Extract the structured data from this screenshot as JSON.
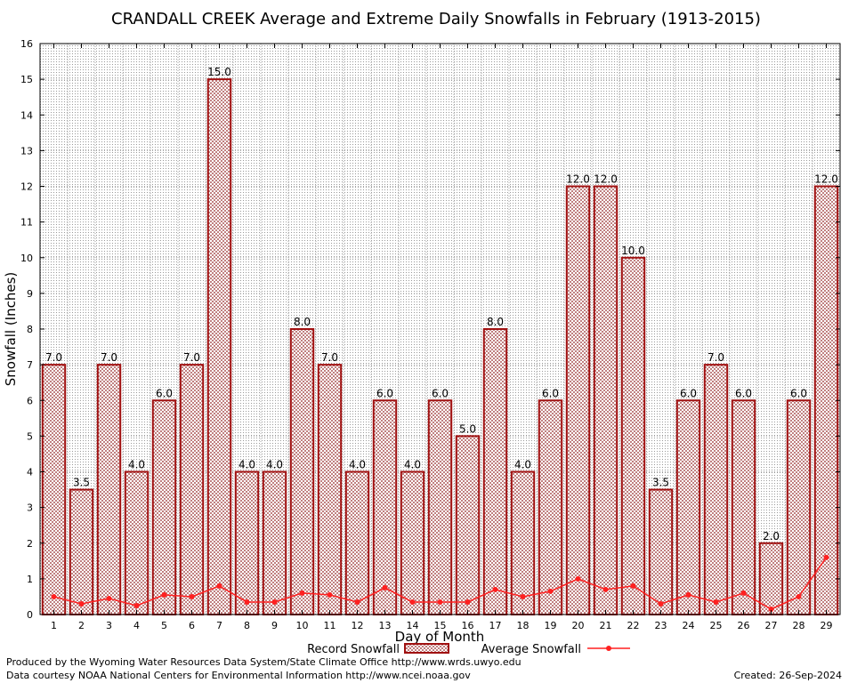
{
  "chart_data": {
    "type": "bar",
    "title": "CRANDALL CREEK Average and Extreme Daily Snowfalls in February (1913-2015)",
    "xlabel": "Day of Month",
    "ylabel": "Snowfall (Inches)",
    "ylim": [
      0,
      16
    ],
    "yticks": [
      "0",
      "1",
      "2",
      "3",
      "4",
      "5",
      "6",
      "7",
      "8",
      "9",
      "10",
      "11",
      "12",
      "13",
      "14",
      "15",
      "16"
    ],
    "categories": [
      "1",
      "2",
      "3",
      "4",
      "5",
      "6",
      "7",
      "8",
      "9",
      "10",
      "11",
      "12",
      "13",
      "14",
      "15",
      "16",
      "17",
      "18",
      "19",
      "20",
      "21",
      "22",
      "23",
      "24",
      "25",
      "26",
      "27",
      "28",
      "29"
    ],
    "series": [
      {
        "name": "Record Snowfall",
        "kind": "bar",
        "color": "#a01010",
        "values": [
          7.0,
          3.5,
          7.0,
          4.0,
          6.0,
          7.0,
          15.0,
          4.0,
          4.0,
          8.0,
          7.0,
          4.0,
          6.0,
          4.0,
          6.0,
          5.0,
          8.0,
          4.0,
          6.0,
          12.0,
          12.0,
          10.0,
          3.5,
          6.0,
          7.0,
          6.0,
          2.0,
          6.0,
          12.0
        ],
        "labels": [
          "7.0",
          "3.5",
          "7.0",
          "4.0",
          "6.0",
          "7.0",
          "15.0",
          "4.0",
          "4.0",
          "8.0",
          "7.0",
          "4.0",
          "6.0",
          "4.0",
          "6.0",
          "5.0",
          "8.0",
          "4.0",
          "6.0",
          "12.0",
          "12.0",
          "10.0",
          "3.5",
          "6.0",
          "7.0",
          "6.0",
          "2.0",
          "6.0",
          "12.0"
        ]
      },
      {
        "name": "Average Snowfall",
        "kind": "line",
        "color": "#ff2020",
        "values": [
          0.5,
          0.3,
          0.45,
          0.25,
          0.55,
          0.5,
          0.8,
          0.35,
          0.35,
          0.6,
          0.55,
          0.35,
          0.75,
          0.35,
          0.35,
          0.35,
          0.7,
          0.5,
          0.65,
          1.0,
          0.7,
          0.8,
          0.3,
          0.55,
          0.35,
          0.6,
          0.15,
          0.5,
          1.6
        ]
      }
    ],
    "grid": true,
    "legend": "bottom-center"
  },
  "footer": {
    "produced_by": "Produced by the Wyoming Water Resources Data System/State Climate Office http://www.wrds.uwyo.edu",
    "data_courtesy": "Data courtesy NOAA National Centers for Environmental Information http://www.ncei.noaa.gov",
    "created": "Created:  26-Sep-2024"
  }
}
